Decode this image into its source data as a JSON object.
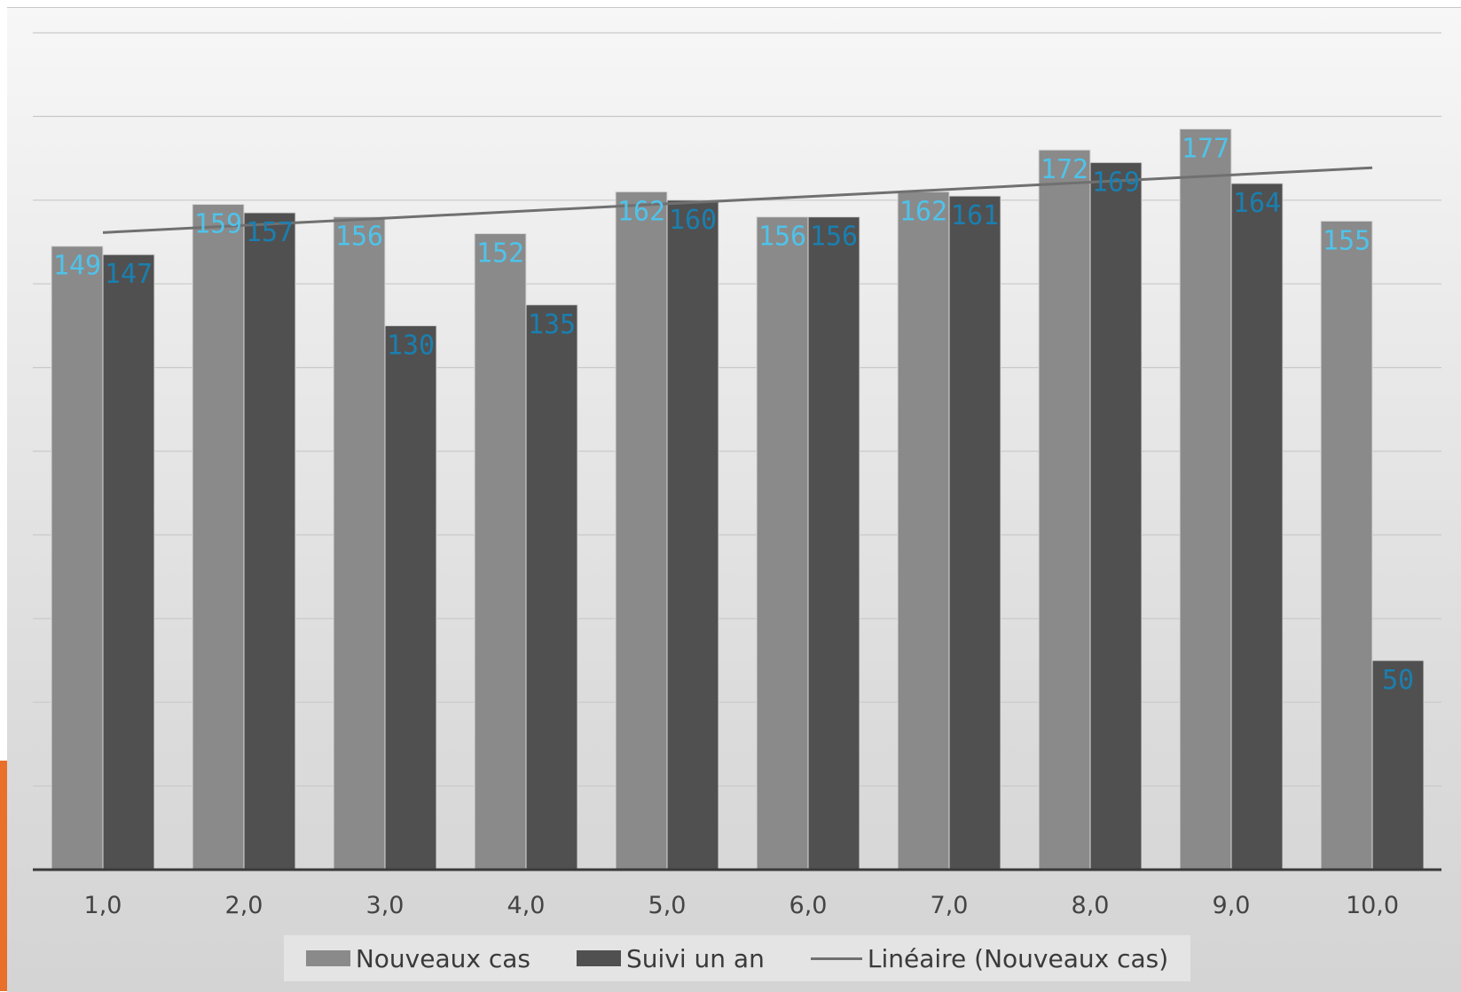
{
  "chart_data": {
    "type": "bar",
    "title": "",
    "xlabel": "",
    "ylabel": "",
    "categories": [
      "1,0",
      "2,0",
      "3,0",
      "4,0",
      "5,0",
      "6,0",
      "7,0",
      "8,0",
      "9,0",
      "10,0"
    ],
    "series": [
      {
        "name": "Nouveaux cas",
        "values": [
          149,
          159,
          156,
          152,
          162,
          156,
          162,
          172,
          177,
          155
        ],
        "color": "#8a8a8a"
      },
      {
        "name": "Suivi un an",
        "values": [
          147,
          157,
          130,
          135,
          160,
          156,
          161,
          169,
          164,
          50
        ],
        "color": "#505050"
      }
    ],
    "trendline": {
      "name": "Linéaire (Nouveaux cas)",
      "series": "Nouveaux cas",
      "type": "linear",
      "color": "#707070"
    },
    "ylim": [
      0,
      200
    ],
    "grid": true,
    "data_label_colors": {
      "Nouveaux cas": "#4fc3ea",
      "Suivi un an": "#1a7fb0"
    },
    "legend_position": "bottom"
  }
}
